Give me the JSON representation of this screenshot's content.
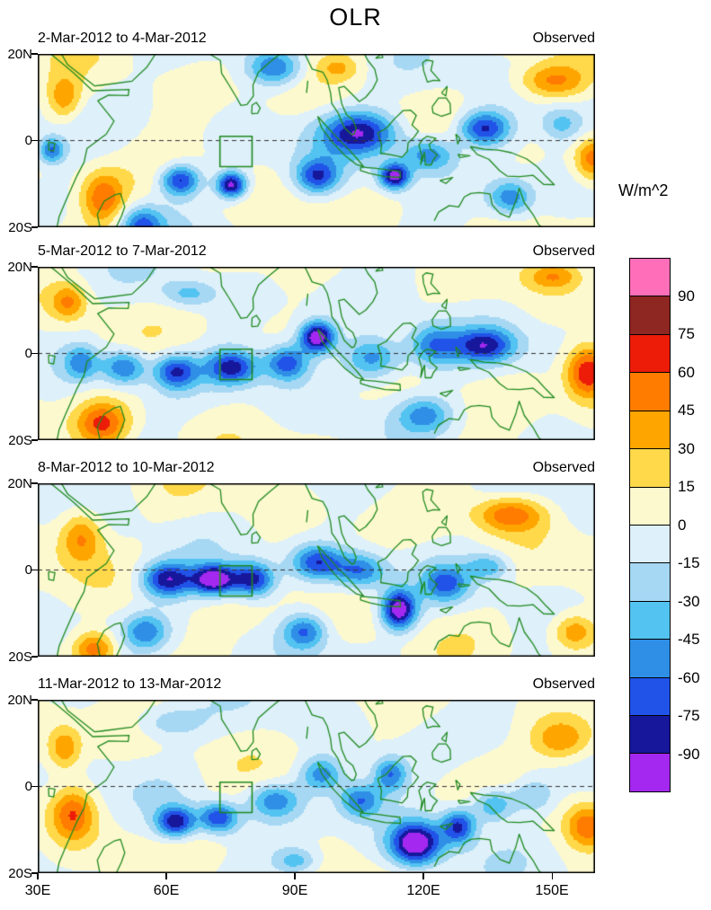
{
  "title": "OLR",
  "units_label": "W/m^2",
  "axes": {
    "x_tick_labels": [
      "30E",
      "60E",
      "90E",
      "120E",
      "150E"
    ],
    "x_tick_lons": [
      30,
      60,
      90,
      120,
      150
    ],
    "y_tick_labels": [
      "20N",
      "0",
      "20S"
    ],
    "y_tick_lats": [
      20,
      0,
      -20
    ],
    "lon_range": [
      30,
      160
    ],
    "lat_range": [
      -20,
      20
    ]
  },
  "colorbar": {
    "levels": [
      -90,
      -75,
      -60,
      -45,
      -30,
      -15,
      0,
      15,
      30,
      45,
      60,
      75,
      90
    ],
    "colors_low_to_high": [
      "#a428f0",
      "#17179c",
      "#2153e8",
      "#2f8fe6",
      "#53c3f1",
      "#a6d8f4",
      "#def0fa",
      "#fdf9cf",
      "#ffd94a",
      "#ffa500",
      "#ff7c00",
      "#ec1c09",
      "#8e2622",
      "#ff6eb8"
    ],
    "tick_labels_top_to_bottom": [
      "90",
      "75",
      "60",
      "45",
      "30",
      "15",
      "0",
      "-15",
      "-30",
      "-45",
      "-60",
      "-75",
      "-90"
    ]
  },
  "chart_data": {
    "type": "heatmap",
    "subtype": "filled_contour_map",
    "title": "OLR",
    "units": "W/m^2",
    "contour_interval": 15,
    "lon_range": [
      30,
      160
    ],
    "lat_range": [
      -20,
      20
    ],
    "equator_line_lat": 0,
    "index_box": {
      "lon": [
        72.5,
        80
      ],
      "lat": [
        -6,
        1
      ]
    },
    "panels": [
      {
        "date_range": "2-Mar-2012 to 4-Mar-2012",
        "source": "Observed",
        "seed": 0.7,
        "anomaly_blobs": [
          [
            105,
            2,
            -85,
            9,
            5
          ],
          [
            121,
            -3,
            -60,
            6,
            4
          ],
          [
            134,
            3,
            -80,
            6,
            4
          ],
          [
            95,
            -8,
            -70,
            5,
            4
          ],
          [
            113,
            -8,
            -100,
            3.5,
            3
          ],
          [
            75,
            -10,
            -100,
            3.5,
            3
          ],
          [
            63,
            -9,
            -80,
            4.5,
            3.5
          ],
          [
            54,
            -19,
            -60,
            5,
            4
          ],
          [
            85,
            17,
            -60,
            6,
            4
          ],
          [
            140,
            -13,
            -55,
            5,
            4
          ],
          [
            33,
            -2,
            -60,
            3,
            3
          ],
          [
            152,
            4,
            -35,
            5,
            4
          ],
          [
            45,
            -13,
            55,
            5,
            6
          ],
          [
            36,
            10,
            42,
            4,
            5
          ],
          [
            150,
            14,
            48,
            8,
            4
          ],
          [
            159,
            -4,
            55,
            4,
            5
          ],
          [
            100,
            17,
            28,
            5,
            3
          ]
        ]
      },
      {
        "date_range": "5-Mar-2012 to 7-Mar-2012",
        "source": "Observed",
        "seed": 2.1,
        "anomaly_blobs": [
          [
            50,
            -3,
            -65,
            5,
            4
          ],
          [
            62,
            -4,
            -75,
            5,
            4
          ],
          [
            75,
            -3,
            -80,
            6,
            4
          ],
          [
            95,
            4,
            -108,
            4,
            3.5
          ],
          [
            88,
            -2,
            -70,
            5,
            4
          ],
          [
            108,
            -1,
            -65,
            7,
            5
          ],
          [
            122,
            2,
            -60,
            6,
            5
          ],
          [
            134,
            2,
            -75,
            7,
            4
          ],
          [
            40,
            -2,
            -50,
            4,
            4
          ],
          [
            120,
            -14,
            -45,
            6,
            4
          ],
          [
            65,
            14,
            -35,
            6,
            3
          ],
          [
            45,
            -16,
            60,
            6,
            5
          ],
          [
            37,
            12,
            42,
            4,
            4
          ],
          [
            158,
            -4,
            75,
            5,
            6
          ],
          [
            150,
            18,
            38,
            6,
            3
          ]
        ]
      },
      {
        "date_range": "8-Mar-2012 to 10-Mar-2012",
        "source": "Observed",
        "seed": 3.6,
        "anomaly_blobs": [
          [
            60,
            -2,
            -85,
            6,
            4
          ],
          [
            71,
            -2,
            -105,
            5,
            3.5
          ],
          [
            80,
            -2,
            -85,
            5,
            4
          ],
          [
            95,
            2,
            -70,
            6,
            4
          ],
          [
            105,
            0,
            -60,
            6,
            4
          ],
          [
            114,
            -9,
            -105,
            4,
            4.5
          ],
          [
            125,
            -3,
            -55,
            5,
            4
          ],
          [
            92,
            -14,
            -60,
            5,
            4
          ],
          [
            55,
            -14,
            -50,
            5,
            4
          ],
          [
            135,
            1,
            -40,
            5,
            3
          ],
          [
            40,
            8,
            50,
            5,
            6
          ],
          [
            43,
            -18,
            58,
            5,
            4
          ],
          [
            140,
            13,
            58,
            8,
            4
          ],
          [
            155,
            -14,
            42,
            5,
            4
          ]
        ]
      },
      {
        "date_range": "11-Mar-2012 to 13-Mar-2012",
        "source": "Observed",
        "seed": 5.2,
        "anomaly_blobs": [
          [
            62,
            -8,
            -85,
            4.5,
            3.5
          ],
          [
            72,
            -7,
            -75,
            4.5,
            3.5
          ],
          [
            85,
            -3,
            -55,
            6,
            4
          ],
          [
            96,
            3,
            -55,
            5,
            4
          ],
          [
            105,
            -3,
            -60,
            5,
            4
          ],
          [
            118,
            -13,
            -108,
            6,
            5
          ],
          [
            128,
            -9,
            -80,
            4,
            4
          ],
          [
            112,
            3,
            -60,
            4,
            4
          ],
          [
            136,
            -4,
            -55,
            5,
            4
          ],
          [
            90,
            -17,
            -40,
            5,
            3
          ],
          [
            60,
            15,
            -30,
            8,
            4
          ],
          [
            145,
            -2,
            -35,
            5,
            4
          ],
          [
            38,
            -6,
            55,
            5,
            6
          ],
          [
            36,
            9,
            45,
            4,
            5
          ],
          [
            152,
            11,
            48,
            7,
            5
          ],
          [
            158,
            -9,
            48,
            5,
            5
          ]
        ]
      }
    ],
    "coastline_color": "#1f8a1f",
    "coastlines": [
      [
        [
          33,
          20
        ],
        [
          35.5,
          18
        ],
        [
          38.5,
          15.5
        ],
        [
          42.8,
          11.5
        ],
        [
          51.3,
          11.8
        ],
        [
          51.1,
          10.4
        ],
        [
          46.5,
          10.5
        ],
        [
          44,
          9.2
        ],
        [
          47.8,
          4.5
        ],
        [
          46,
          1.5
        ],
        [
          41.5,
          -1.8
        ],
        [
          40.8,
          -5
        ],
        [
          39.2,
          -8
        ],
        [
          36.5,
          -14
        ],
        [
          35,
          -17.5
        ],
        [
          34.5,
          -20
        ]
      ],
      [
        [
          35.5,
          20
        ],
        [
          37,
          17.5
        ],
        [
          41.5,
          14
        ],
        [
          43.3,
          12.6
        ],
        [
          45,
          12.8
        ],
        [
          52,
          13.7
        ],
        [
          55.5,
          17
        ],
        [
          57.5,
          20
        ]
      ],
      [
        [
          44.5,
          -20
        ],
        [
          43.9,
          -17
        ],
        [
          45.5,
          -14
        ],
        [
          48,
          -12.5
        ],
        [
          49.3,
          -12.2
        ],
        [
          50.3,
          -15.3
        ],
        [
          49.5,
          -17.5
        ],
        [
          48.3,
          -20
        ]
      ],
      [
        [
          70,
          20
        ],
        [
          72.6,
          18.5
        ],
        [
          72.9,
          15.5
        ],
        [
          74.5,
          13
        ],
        [
          76.2,
          10.2
        ],
        [
          77.4,
          8.1
        ],
        [
          78.8,
          8.3
        ],
        [
          80.3,
          10.3
        ],
        [
          80.2,
          12.8
        ],
        [
          81.5,
          15.8
        ],
        [
          84,
          18
        ],
        [
          86.5,
          20
        ]
      ],
      [
        [
          79.9,
          6.2
        ],
        [
          81.3,
          6.3
        ],
        [
          81.9,
          7.5
        ],
        [
          81,
          8.8
        ],
        [
          80,
          8.2
        ],
        [
          79.9,
          6.2
        ]
      ],
      [
        [
          92.3,
          20
        ],
        [
          94,
          16.5
        ],
        [
          96.5,
          15.8
        ],
        [
          97.5,
          14
        ],
        [
          98.3,
          11
        ],
        [
          98.6,
          8.5
        ],
        [
          100,
          6.5
        ],
        [
          101.5,
          3
        ],
        [
          103.2,
          1.4
        ],
        [
          103.8,
          1.5
        ],
        [
          104.3,
          2.8
        ],
        [
          103.5,
          4.8
        ],
        [
          102,
          6
        ],
        [
          100.9,
          8.5
        ],
        [
          100.2,
          12.2
        ],
        [
          101.5,
          12.5
        ],
        [
          102.5,
          11.5
        ],
        [
          105,
          9
        ],
        [
          106.5,
          10
        ],
        [
          108.2,
          12
        ],
        [
          109.2,
          14
        ],
        [
          108.6,
          16.5
        ],
        [
          107,
          18.5
        ],
        [
          106.2,
          20
        ]
      ],
      [
        [
          95.3,
          5.6
        ],
        [
          97.2,
          3.5
        ],
        [
          100,
          0.5
        ],
        [
          102.5,
          -2
        ],
        [
          104.6,
          -4.3
        ],
        [
          106,
          -6
        ],
        [
          104.3,
          -5.5
        ],
        [
          101.5,
          -3.3
        ],
        [
          98.8,
          -0.5
        ],
        [
          96.2,
          3
        ],
        [
          95.3,
          5.6
        ]
      ],
      [
        [
          105.3,
          -6.1
        ],
        [
          109,
          -6.4
        ],
        [
          112,
          -6.8
        ],
        [
          114.5,
          -7.1
        ],
        [
          114.6,
          -8.5
        ],
        [
          111,
          -8.3
        ],
        [
          107.5,
          -7.6
        ],
        [
          105.3,
          -6.9
        ],
        [
          105.3,
          -6.1
        ]
      ],
      [
        [
          109.3,
          1.8
        ],
        [
          110.2,
          -1
        ],
        [
          110,
          -2.9
        ],
        [
          112.5,
          -3.3
        ],
        [
          115,
          -3.8
        ],
        [
          116.2,
          -2.5
        ],
        [
          116.4,
          -0.5
        ],
        [
          117.8,
          0.8
        ],
        [
          118.8,
          2.2
        ],
        [
          117.3,
          3.6
        ],
        [
          118.3,
          5.8
        ],
        [
          117,
          7
        ],
        [
          115.2,
          6.9
        ],
        [
          113.2,
          5
        ],
        [
          111.3,
          2.8
        ],
        [
          109.3,
          1.8
        ]
      ],
      [
        [
          119.3,
          -5.6
        ],
        [
          119.6,
          -3.5
        ],
        [
          118.9,
          -1
        ],
        [
          119.8,
          0.3
        ],
        [
          120.8,
          1
        ],
        [
          122.9,
          0.5
        ],
        [
          121.3,
          -0.9
        ],
        [
          121.6,
          -2
        ],
        [
          123.2,
          -3.3
        ],
        [
          122.3,
          -4.4
        ],
        [
          121.8,
          -5.6
        ],
        [
          120.4,
          -5.6
        ],
        [
          120.2,
          -2.7
        ],
        [
          119.3,
          -5.6
        ]
      ],
      [
        [
          120,
          16.2
        ],
        [
          119.8,
          18
        ],
        [
          120.6,
          18.6
        ],
        [
          122.2,
          18.3
        ],
        [
          121.7,
          16.2
        ],
        [
          123.8,
          13.8
        ],
        [
          122.3,
          13.9
        ],
        [
          120.9,
          13.5
        ],
        [
          120,
          16.2
        ]
      ],
      [
        [
          122,
          7.8
        ],
        [
          123.5,
          9.8
        ],
        [
          125.3,
          9.8
        ],
        [
          126.2,
          8.5
        ],
        [
          126.3,
          6.3
        ],
        [
          124.2,
          5.6
        ],
        [
          122.2,
          6.4
        ],
        [
          122,
          7.8
        ]
      ],
      [
        [
          124.2,
          11
        ],
        [
          125.5,
          12.5
        ],
        [
          125.2,
          10.3
        ],
        [
          124.2,
          11
        ]
      ],
      [
        [
          130.9,
          -1.4
        ],
        [
          134.2,
          -2
        ],
        [
          137.5,
          -2.2
        ],
        [
          140.5,
          -2.8
        ],
        [
          144,
          -4.2
        ],
        [
          146.5,
          -6
        ],
        [
          148.5,
          -8.2
        ],
        [
          150.5,
          -10.2
        ],
        [
          148,
          -10.1
        ],
        [
          145.5,
          -8
        ],
        [
          142.5,
          -8.3
        ],
        [
          139.5,
          -8.2
        ],
        [
          137.8,
          -7
        ],
        [
          135.2,
          -4.3
        ],
        [
          132.5,
          -3.2
        ],
        [
          130.9,
          -1.4
        ]
      ],
      [
        [
          122.5,
          -18.5
        ],
        [
          123.5,
          -16.5
        ],
        [
          126,
          -15
        ],
        [
          128.2,
          -15.3
        ],
        [
          129.5,
          -13
        ],
        [
          131,
          -12.2
        ],
        [
          133,
          -12
        ],
        [
          135.5,
          -12.3
        ],
        [
          136,
          -14.8
        ],
        [
          137.8,
          -16.8
        ],
        [
          140,
          -17.7
        ],
        [
          141.5,
          -14
        ],
        [
          142.3,
          -11
        ],
        [
          143.5,
          -14.3
        ],
        [
          145.5,
          -17
        ],
        [
          146.8,
          -19.3
        ],
        [
          147.5,
          -20
        ]
      ],
      [
        [
          123.8,
          -9.2
        ],
        [
          126.8,
          -8.5
        ],
        [
          125.2,
          -9.9
        ],
        [
          123.8,
          -9.2
        ]
      ],
      [
        [
          127.5,
          1.5
        ],
        [
          128.5,
          0.5
        ],
        [
          128,
          -0.8
        ],
        [
          127.5,
          1.5
        ]
      ],
      [
        [
          128,
          -3.2
        ],
        [
          130.8,
          -3.5
        ],
        [
          128.5,
          -3.9
        ],
        [
          128,
          -3.2
        ]
      ],
      [
        [
          32.5,
          -0.4
        ],
        [
          34,
          -0.6
        ],
        [
          33.7,
          -2.4
        ],
        [
          32.6,
          -2.2
        ],
        [
          32.5,
          -0.4
        ]
      ],
      [
        [
          108.8,
          19
        ],
        [
          110.5,
          19.2
        ],
        [
          110.2,
          20
        ],
        [
          108.8,
          19
        ]
      ],
      [
        [
          92.7,
          11
        ],
        [
          93,
          13.8
        ]
      ]
    ]
  }
}
